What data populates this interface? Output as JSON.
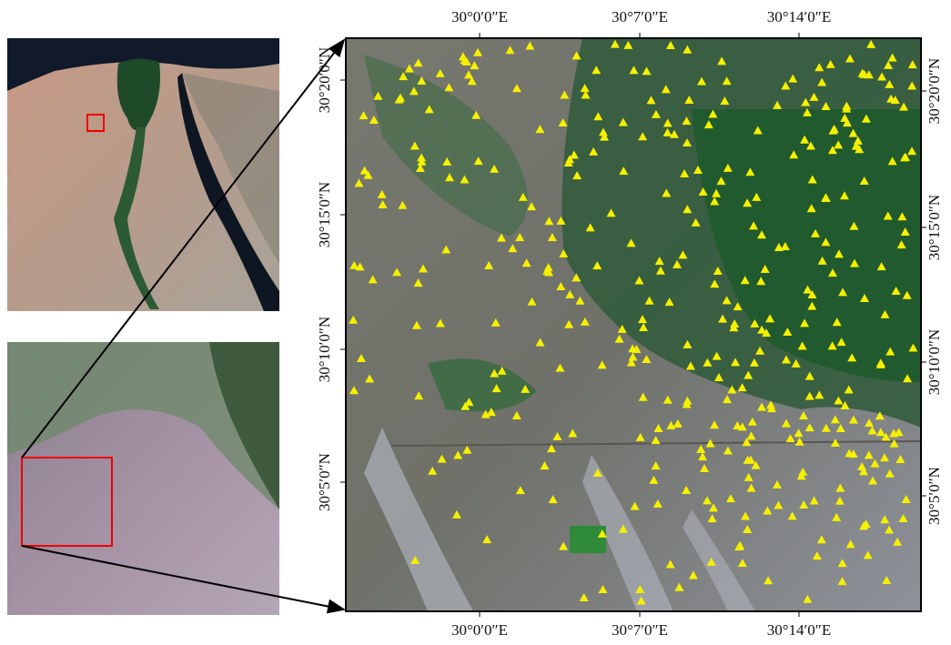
{
  "axes": {
    "top": [
      "30°0′0″E",
      "30°7′0″E",
      "30°14′0″E"
    ],
    "bottom": [
      "30°0′0″E",
      "30°7′0″E",
      "30°14′0″E"
    ],
    "left": [
      "30°20′0″N",
      "30°15′0″N",
      "30°10′0″N",
      "30°5′0″N"
    ],
    "right": [
      "30°20′0″N",
      "30°15′0″N",
      "30°10′0″N",
      "30°5′0″N"
    ]
  }
}
